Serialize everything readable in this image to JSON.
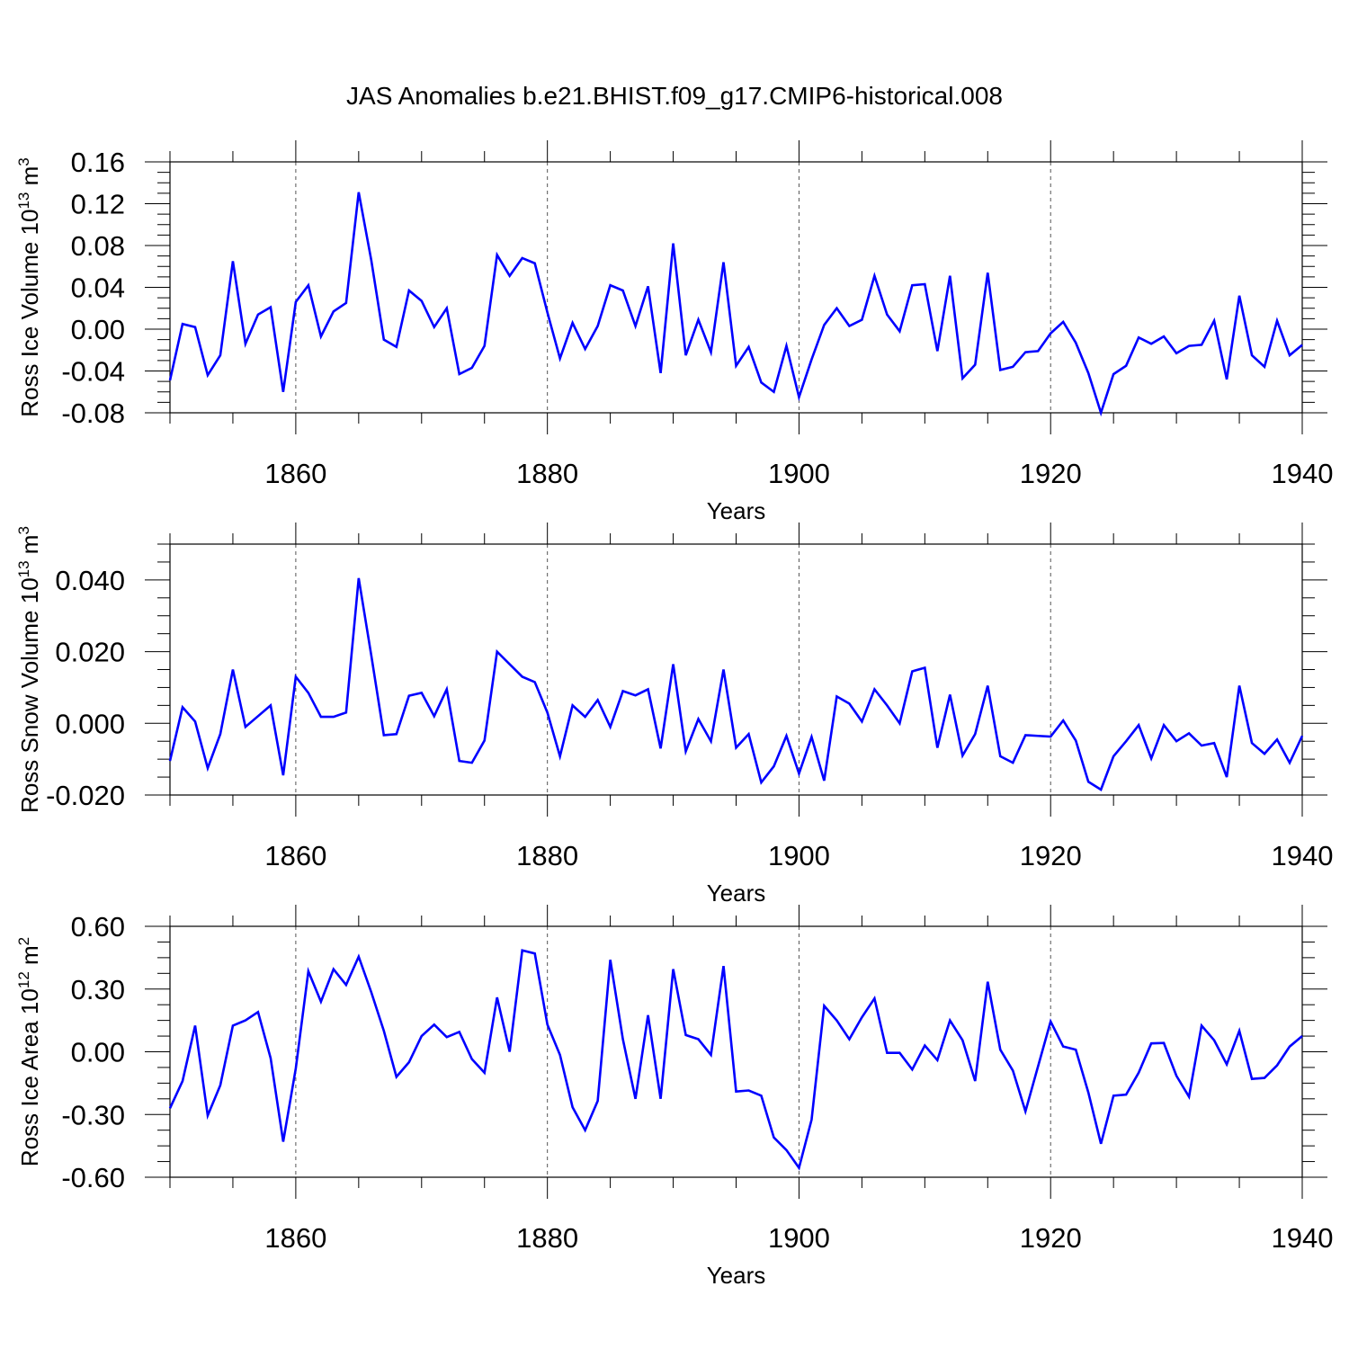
{
  "figure": {
    "title": "JAS Anomalies b.e21.BHIST.f09_g17.CMIP6-historical.008",
    "line_color": "#0000ff"
  },
  "chart_data": [
    {
      "type": "line",
      "title": "",
      "xlabel": "Years",
      "ylabel": {
        "text": "Ross Ice Volume 10",
        "exponent": "13",
        "unit": " m",
        "unit_power": "3"
      },
      "xlim": [
        1850,
        1940
      ],
      "ylim": [
        -0.08,
        0.16
      ],
      "x_ticks": [
        1860,
        1880,
        1900,
        1920,
        1940
      ],
      "x_tick_labels": [
        "1860",
        "1880",
        "1900",
        "1920",
        "1940"
      ],
      "y_ticks": [
        -0.08,
        -0.04,
        0.0,
        0.04,
        0.08,
        0.12,
        0.16
      ],
      "y_tick_labels": [
        "-0.08",
        "-0.04",
        "0.00",
        "0.04",
        "0.08",
        "0.12",
        "0.16"
      ],
      "grid": "vertical dashed at major x ticks",
      "series": [
        {
          "name": "Ross Ice Volume",
          "x_start": 1850,
          "values": [
            -0.049,
            0.005,
            0.002,
            -0.044,
            -0.025,
            0.065,
            -0.014,
            0.014,
            0.021,
            -0.06,
            0.026,
            0.042,
            -0.007,
            0.017,
            0.025,
            0.131,
            0.066,
            -0.01,
            -0.017,
            0.037,
            0.027,
            0.002,
            0.02,
            -0.043,
            -0.037,
            -0.016,
            0.071,
            0.051,
            0.068,
            0.063,
            0.016,
            -0.028,
            0.006,
            -0.019,
            0.003,
            0.042,
            0.037,
            0.003,
            0.041,
            -0.042,
            0.082,
            -0.025,
            0.009,
            -0.022,
            0.064,
            -0.035,
            -0.017,
            -0.051,
            -0.06,
            -0.016,
            -0.065,
            -0.029,
            0.004,
            0.02,
            0.003,
            0.009,
            0.051,
            0.014,
            -0.002,
            0.042,
            0.043,
            -0.021,
            0.051,
            -0.047,
            -0.034,
            0.054,
            -0.039,
            -0.036,
            -0.022,
            -0.021,
            -0.004,
            0.007,
            -0.013,
            -0.042,
            -0.08,
            -0.043,
            -0.035,
            -0.008,
            -0.014,
            -0.007,
            -0.023,
            -0.016,
            -0.015,
            0.008,
            -0.048,
            0.032,
            -0.025,
            -0.036,
            0.008,
            -0.025,
            -0.015
          ]
        }
      ]
    },
    {
      "type": "line",
      "title": "",
      "xlabel": "Years",
      "ylabel": {
        "text": "Ross Snow Volume 10",
        "exponent": "13",
        "unit": " m",
        "unit_power": "3"
      },
      "xlim": [
        1850,
        1940
      ],
      "ylim": [
        -0.02,
        0.05
      ],
      "x_ticks": [
        1860,
        1880,
        1900,
        1920,
        1940
      ],
      "x_tick_labels": [
        "1860",
        "1880",
        "1900",
        "1920",
        "1940"
      ],
      "y_ticks": [
        -0.02,
        0.0,
        0.02,
        0.04
      ],
      "y_tick_labels": [
        "-0.020",
        "0.000",
        "0.020",
        "0.040"
      ],
      "grid": "vertical dashed at major x ticks",
      "series": [
        {
          "name": "Ross Snow Volume",
          "x_start": 1850,
          "values": [
            -0.0105,
            0.0045,
            0.0005,
            -0.0125,
            -0.003,
            0.015,
            -0.001,
            0.002,
            0.005,
            -0.0145,
            0.013,
            0.0085,
            0.0018,
            0.0018,
            0.003,
            0.0405,
            0.019,
            -0.0033,
            -0.003,
            0.0077,
            0.0085,
            0.002,
            0.0095,
            -0.0105,
            -0.011,
            -0.0048,
            0.02,
            0.0165,
            0.013,
            0.0115,
            0.003,
            -0.0092,
            0.005,
            0.0018,
            0.0065,
            -0.001,
            0.009,
            0.0078,
            0.0095,
            -0.007,
            0.0165,
            -0.0078,
            0.0012,
            -0.005,
            0.015,
            -0.0068,
            -0.003,
            -0.0165,
            -0.012,
            -0.0035,
            -0.014,
            -0.0038,
            -0.016,
            0.0075,
            0.0055,
            0.0005,
            0.0095,
            0.005,
            0.0,
            0.0145,
            0.0155,
            -0.0068,
            0.008,
            -0.009,
            -0.003,
            0.0105,
            -0.0092,
            -0.011,
            -0.0033,
            -0.0035,
            -0.0037,
            0.0008,
            -0.0048,
            -0.0163,
            -0.0185,
            -0.0092,
            -0.005,
            -0.0005,
            -0.0098,
            -0.0005,
            -0.005,
            -0.0028,
            -0.0062,
            -0.0055,
            -0.015,
            0.0105,
            -0.0055,
            -0.0085,
            -0.0045,
            -0.011,
            -0.0035
          ]
        }
      ]
    },
    {
      "type": "line",
      "title": "",
      "xlabel": "Years",
      "ylabel": {
        "text": "Ross Ice Area 10",
        "exponent": "12",
        "unit": " m",
        "unit_power": "2"
      },
      "xlim": [
        1850,
        1940
      ],
      "ylim": [
        -0.6,
        0.6
      ],
      "x_ticks": [
        1860,
        1880,
        1900,
        1920,
        1940
      ],
      "x_tick_labels": [
        "1860",
        "1880",
        "1900",
        "1920",
        "1940"
      ],
      "y_ticks": [
        -0.6,
        -0.3,
        0.0,
        0.3,
        0.6
      ],
      "y_tick_labels": [
        "-0.60",
        "-0.30",
        "0.00",
        "0.30",
        "0.60"
      ],
      "grid": "vertical dashed at major x ticks",
      "series": [
        {
          "name": "Ross Ice Area",
          "x_start": 1850,
          "values": [
            -0.27,
            -0.14,
            0.125,
            -0.305,
            -0.16,
            0.125,
            0.15,
            0.19,
            -0.03,
            -0.43,
            -0.08,
            0.385,
            0.24,
            0.395,
            0.32,
            0.455,
            0.285,
            0.1,
            -0.12,
            -0.05,
            0.075,
            0.13,
            0.07,
            0.095,
            -0.035,
            -0.1,
            0.26,
            0.0,
            0.485,
            0.47,
            0.13,
            -0.015,
            -0.265,
            -0.375,
            -0.235,
            0.44,
            0.06,
            -0.225,
            0.175,
            -0.225,
            0.395,
            0.08,
            0.06,
            -0.015,
            0.41,
            -0.19,
            -0.185,
            -0.21,
            -0.41,
            -0.47,
            -0.555,
            -0.325,
            0.22,
            0.15,
            0.06,
            0.165,
            0.255,
            -0.005,
            -0.005,
            -0.085,
            0.03,
            -0.04,
            0.15,
            0.055,
            -0.14,
            0.335,
            0.01,
            -0.09,
            -0.285,
            -0.07,
            0.145,
            0.025,
            0.01,
            -0.195,
            -0.44,
            -0.21,
            -0.205,
            -0.1,
            0.04,
            0.042,
            -0.115,
            -0.215,
            0.125,
            0.055,
            -0.06,
            0.1,
            -0.13,
            -0.125,
            -0.065,
            0.025,
            0.075
          ]
        }
      ]
    }
  ]
}
